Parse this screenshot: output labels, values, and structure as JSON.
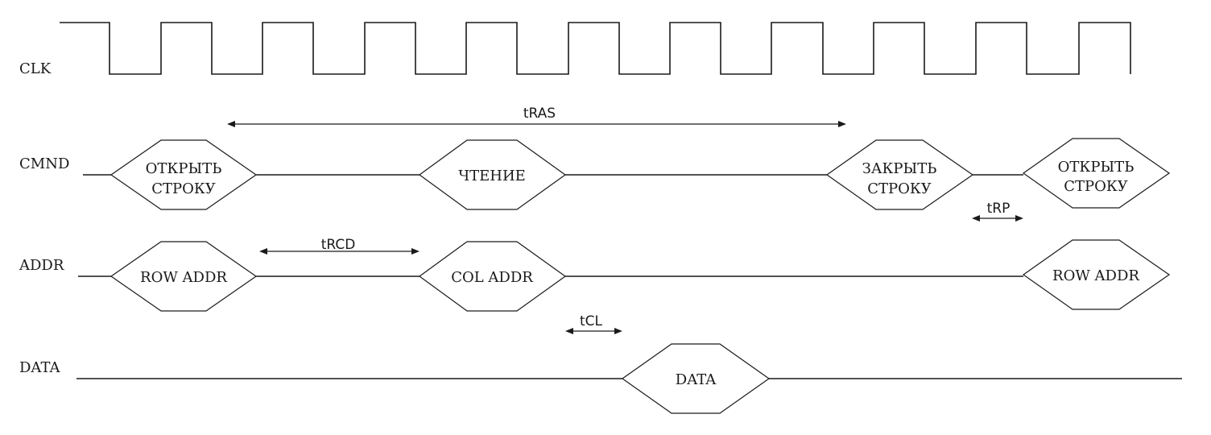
{
  "diagram": {
    "signals": {
      "clk": "CLK",
      "cmnd": "CMND",
      "addr": "ADDR",
      "data": "DATA"
    },
    "cmnd_cells": [
      {
        "id": "open1",
        "lines": [
          "ОТКРЫТЬ",
          "СТРОКУ"
        ]
      },
      {
        "id": "read",
        "lines": [
          "ЧТЕНИЕ"
        ]
      },
      {
        "id": "close",
        "lines": [
          "ЗАКРЫТЬ",
          "СТРОКУ"
        ]
      },
      {
        "id": "open2",
        "lines": [
          "ОТКРЫТЬ",
          "СТРОКУ"
        ]
      }
    ],
    "addr_cells": [
      {
        "id": "row1",
        "lines": [
          "ROW ADDR"
        ]
      },
      {
        "id": "col",
        "lines": [
          "COL ADDR"
        ]
      },
      {
        "id": "row2",
        "lines": [
          "ROW ADDR"
        ]
      }
    ],
    "data_cells": [
      {
        "id": "data",
        "lines": [
          "DATA"
        ]
      }
    ],
    "timings": {
      "tras": "tRAS",
      "trcd": "tRCD",
      "tcl": "tCL",
      "trp": "tRP"
    },
    "clk_cycles": 10
  }
}
